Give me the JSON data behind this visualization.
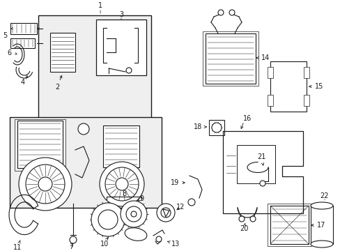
{
  "bg_color": "#ffffff",
  "line_color": "#1a1a1a",
  "gray_fill": "#efefef",
  "white_fill": "#ffffff",
  "figw": 4.89,
  "figh": 3.6,
  "dpi": 100
}
